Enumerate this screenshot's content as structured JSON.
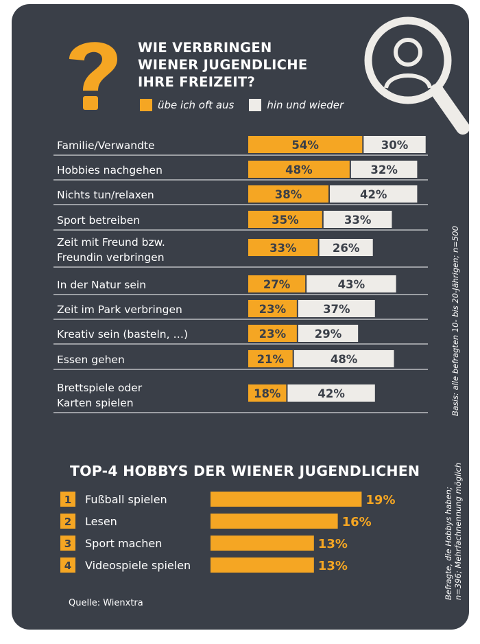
{
  "title_lines": [
    "WIE VERBRINGEN",
    "WIENER JUGENDLICHE",
    "IHRE FREIZEIT?"
  ],
  "legend": [
    {
      "label": "übe ich oft aus",
      "color": "#f5a623"
    },
    {
      "label": "hin und wieder",
      "color": "#eeece8"
    }
  ],
  "colors": {
    "background": "#3a3f48",
    "accent": "#f5a623",
    "light": "#eeece8",
    "text_dark": "#3a3f48"
  },
  "icons": [
    "question-mark-icon",
    "magnifier-person-icon"
  ],
  "chart_data": [
    {
      "type": "bar",
      "orientation": "horizontal",
      "stacked": true,
      "categories": [
        [
          "Familie/Verwandte"
        ],
        [
          "Hobbies nachgehen"
        ],
        [
          "Nichts tun/relaxen"
        ],
        [
          "Sport betreiben"
        ],
        [
          "Zeit mit Freund bzw.",
          "Freundin verbringen"
        ],
        [
          "In der Natur sein"
        ],
        [
          "Zeit im Park verbringen"
        ],
        [
          "Kreativ sein (basteln, …)"
        ],
        [
          "Essen gehen"
        ],
        [
          "Brettspiele oder",
          "Karten spielen"
        ]
      ],
      "series": [
        {
          "name": "übe ich oft aus",
          "values": [
            54,
            48,
            38,
            35,
            33,
            27,
            23,
            23,
            21,
            18
          ],
          "labels": [
            "54%",
            "48%",
            "38%",
            "35%",
            "33%",
            "27%",
            "23%",
            "23%",
            "21%",
            "18%"
          ]
        },
        {
          "name": "hin und wieder",
          "values": [
            30,
            32,
            42,
            33,
            26,
            43,
            37,
            29,
            48,
            42
          ],
          "labels": [
            "30%",
            "32%",
            "42%",
            "33%",
            "26%",
            "43%",
            "37%",
            "29%",
            "48%",
            "42%"
          ]
        }
      ],
      "unit": "%",
      "note": "Basis: alle befragten 10- bis 20-Jährigen; n=500"
    },
    {
      "type": "bar",
      "orientation": "horizontal",
      "title_bold": "TOP-4 HOBBYS",
      "title_rest": " DER WIENER JUGENDLICHEN",
      "ranks": [
        "1",
        "2",
        "3",
        "4"
      ],
      "categories": [
        "Fußball spielen",
        "Lesen",
        "Sport machen",
        "Videospiele spielen"
      ],
      "values": [
        19,
        16,
        13,
        13
      ],
      "labels": [
        "19%",
        "16%",
        "13%",
        "13%"
      ],
      "unit": "%",
      "note_lines": [
        "Befragte, die Hobbys haben;",
        "n=396; Mehrfachnennung möglich"
      ]
    }
  ],
  "source": "Quelle: Wienxtra"
}
